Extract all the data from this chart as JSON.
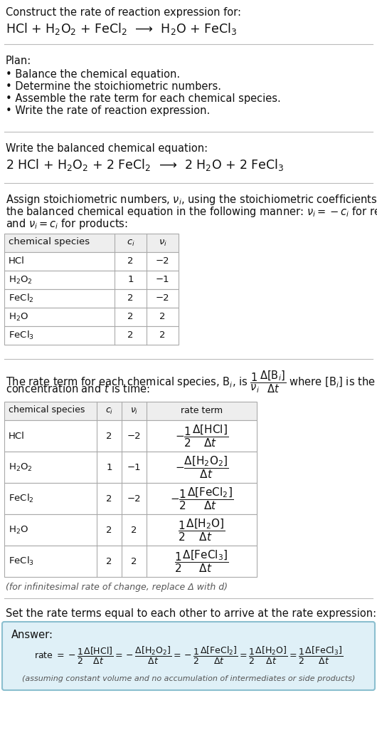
{
  "title": "Construct the rate of reaction expression for:",
  "reaction_unbalanced": "HCl + H$_2$O$_2$ + FeCl$_2$  ⟶  H$_2$O + FeCl$_3$",
  "plan_header": "Plan:",
  "plan_items": [
    "• Balance the chemical equation.",
    "• Determine the stoichiometric numbers.",
    "• Assemble the rate term for each chemical species.",
    "• Write the rate of reaction expression."
  ],
  "balanced_header": "Write the balanced chemical equation:",
  "reaction_balanced": "2 HCl + H$_2$O$_2$ + 2 FeCl$_2$  ⟶  2 H$_2$O + 2 FeCl$_3$",
  "stoich_intro_lines": [
    "Assign stoichiometric numbers, $\\nu_i$, using the stoichiometric coefficients, $c_i$, from",
    "the balanced chemical equation in the following manner: $\\nu_i = -c_i$ for reactants",
    "and $\\nu_i = c_i$ for products:"
  ],
  "table1_headers": [
    "chemical species",
    "$c_i$",
    "$\\nu_i$"
  ],
  "table1_data": [
    [
      "HCl",
      "2",
      "−2"
    ],
    [
      "H$_2$O$_2$",
      "1",
      "−1"
    ],
    [
      "FeCl$_2$",
      "2",
      "−2"
    ],
    [
      "H$_2$O",
      "2",
      "2"
    ],
    [
      "FeCl$_3$",
      "2",
      "2"
    ]
  ],
  "rate_term_intro_lines": [
    "The rate term for each chemical species, B$_i$, is $\\dfrac{1}{\\nu_i}\\dfrac{\\Delta[\\mathrm{B}_i]}{\\Delta t}$ where [B$_i$] is the amount",
    "concentration and $t$ is time:"
  ],
  "table2_headers": [
    "chemical species",
    "$c_i$",
    "$\\nu_i$",
    "rate term"
  ],
  "table2_data": [
    [
      "HCl",
      "2",
      "−2",
      "$-\\dfrac{1}{2}\\dfrac{\\Delta[\\mathrm{HCl}]}{\\Delta t}$"
    ],
    [
      "H$_2$O$_2$",
      "1",
      "−1",
      "$-\\dfrac{\\Delta[\\mathrm{H_2O_2}]}{\\Delta t}$"
    ],
    [
      "FeCl$_2$",
      "2",
      "−2",
      "$-\\dfrac{1}{2}\\dfrac{\\Delta[\\mathrm{FeCl_2}]}{\\Delta t}$"
    ],
    [
      "H$_2$O",
      "2",
      "2",
      "$\\dfrac{1}{2}\\dfrac{\\Delta[\\mathrm{H_2O}]}{\\Delta t}$"
    ],
    [
      "FeCl$_3$",
      "2",
      "2",
      "$\\dfrac{1}{2}\\dfrac{\\Delta[\\mathrm{FeCl_3}]}{\\Delta t}$"
    ]
  ],
  "infinitesimal_note": "(for infinitesimal rate of change, replace Δ with d)",
  "set_equal_text": "Set the rate terms equal to each other to arrive at the rate expression:",
  "answer_label": "Answer:",
  "answer_box_color": "#dff0f7",
  "answer_border_color": "#8bbfcf",
  "footnote": "(assuming constant volume and no accumulation of intermediates or side products)",
  "bg_color": "#ffffff",
  "text_color": "#111111",
  "table_header_bg": "#eeeeee",
  "table_border_color": "#aaaaaa",
  "separator_color": "#bbbbbb"
}
